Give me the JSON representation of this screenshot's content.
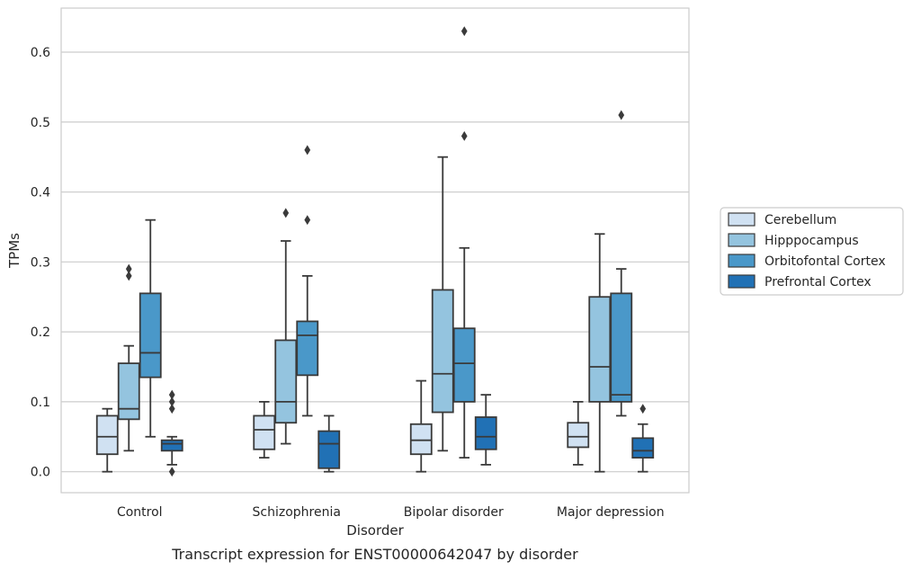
{
  "chart_data": {
    "type": "box",
    "title": "",
    "caption": "Transcript expression for ENST00000642047 by disorder",
    "xlabel": "Disorder",
    "ylabel": "TPMs",
    "ylim": [
      -0.03,
      0.663
    ],
    "yticks": [
      "0.0",
      "0.1",
      "0.2",
      "0.3",
      "0.4",
      "0.5",
      "0.6"
    ],
    "grid": true,
    "legend_position": "right",
    "categories": [
      "Control",
      "Schizophrenia",
      "Bipolar disorder",
      "Major depression"
    ],
    "series": [
      {
        "name": "Cerebellum",
        "color": "#d0e1f2",
        "boxes": [
          {
            "whislo": 0.0,
            "q1": 0.025,
            "med": 0.05,
            "q3": 0.08,
            "whishi": 0.09,
            "fliers": []
          },
          {
            "whislo": 0.02,
            "q1": 0.032,
            "med": 0.06,
            "q3": 0.08,
            "whishi": 0.1,
            "fliers": []
          },
          {
            "whislo": 0.0,
            "q1": 0.025,
            "med": 0.045,
            "q3": 0.068,
            "whishi": 0.13,
            "fliers": []
          },
          {
            "whislo": 0.01,
            "q1": 0.035,
            "med": 0.05,
            "q3": 0.07,
            "whishi": 0.1,
            "fliers": []
          }
        ]
      },
      {
        "name": "Hipppocampus",
        "color": "#94c4df",
        "boxes": [
          {
            "whislo": 0.03,
            "q1": 0.075,
            "med": 0.09,
            "q3": 0.155,
            "whishi": 0.18,
            "fliers": [
              0.28,
              0.29
            ]
          },
          {
            "whislo": 0.04,
            "q1": 0.07,
            "med": 0.1,
            "q3": 0.188,
            "whishi": 0.33,
            "fliers": [
              0.37
            ]
          },
          {
            "whislo": 0.03,
            "q1": 0.085,
            "med": 0.14,
            "q3": 0.26,
            "whishi": 0.45,
            "fliers": []
          },
          {
            "whislo": 0.0,
            "q1": 0.1,
            "med": 0.15,
            "q3": 0.25,
            "whishi": 0.34,
            "fliers": []
          }
        ]
      },
      {
        "name": "Orbitofontal Cortex",
        "color": "#4a98c9",
        "boxes": [
          {
            "whislo": 0.05,
            "q1": 0.135,
            "med": 0.17,
            "q3": 0.255,
            "whishi": 0.36,
            "fliers": []
          },
          {
            "whislo": 0.08,
            "q1": 0.138,
            "med": 0.195,
            "q3": 0.215,
            "whishi": 0.28,
            "fliers": [
              0.36,
              0.46
            ]
          },
          {
            "whislo": 0.02,
            "q1": 0.1,
            "med": 0.155,
            "q3": 0.205,
            "whishi": 0.32,
            "fliers": [
              0.48,
              0.63
            ]
          },
          {
            "whislo": 0.08,
            "q1": 0.1,
            "med": 0.11,
            "q3": 0.255,
            "whishi": 0.29,
            "fliers": [
              0.51
            ]
          }
        ]
      },
      {
        "name": "Prefrontal Cortex",
        "color": "#2171b5",
        "boxes": [
          {
            "whislo": 0.01,
            "q1": 0.03,
            "med": 0.04,
            "q3": 0.045,
            "whishi": 0.05,
            "fliers": [
              0.0,
              0.09,
              0.1,
              0.11
            ]
          },
          {
            "whislo": 0.0,
            "q1": 0.005,
            "med": 0.04,
            "q3": 0.058,
            "whishi": 0.08,
            "fliers": []
          },
          {
            "whislo": 0.01,
            "q1": 0.032,
            "med": 0.05,
            "q3": 0.078,
            "whishi": 0.11,
            "fliers": []
          },
          {
            "whislo": 0.0,
            "q1": 0.02,
            "med": 0.03,
            "q3": 0.048,
            "whishi": 0.068,
            "fliers": [
              0.09
            ]
          }
        ]
      }
    ]
  }
}
